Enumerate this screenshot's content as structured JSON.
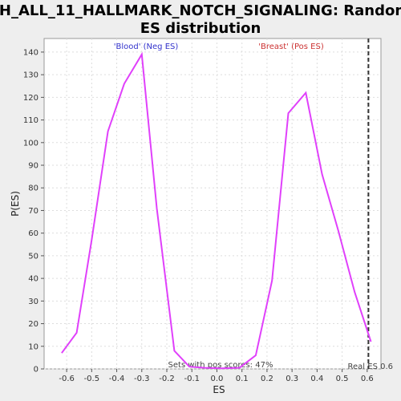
{
  "chart_data": {
    "type": "line",
    "title_line1": "H_ALL_11_HALLMARK_NOTCH_SIGNALING: Random",
    "title_line2": "ES distribution",
    "xlabel": "ES",
    "ylabel": "P(ES)",
    "xlim": [
      -0.69,
      0.655
    ],
    "ylim": [
      0,
      146
    ],
    "x_ticks": [
      -0.6,
      -0.5,
      -0.4,
      -0.3,
      -0.2,
      -0.1,
      0.0,
      0.1,
      0.2,
      0.3,
      0.4,
      0.5,
      0.6
    ],
    "x_tick_labels": [
      "-0.6",
      "-0.5",
      "-0.4",
      "-0.3",
      "-0.2",
      "-0.1",
      "0.0",
      "0.1",
      "0.2",
      "0.3",
      "0.4",
      "0.5",
      "0.6"
    ],
    "y_ticks": [
      0,
      10,
      20,
      30,
      40,
      50,
      60,
      70,
      80,
      90,
      100,
      110,
      120,
      130,
      140
    ],
    "y_tick_labels": [
      "0",
      "10",
      "20",
      "30",
      "40",
      "50",
      "60",
      "70",
      "80",
      "90",
      "100",
      "110",
      "120",
      "130",
      "140"
    ],
    "grid": true,
    "series_color": "#e040fb",
    "x": [
      -0.62,
      -0.56,
      -0.5,
      -0.435,
      -0.37,
      -0.3,
      -0.24,
      -0.17,
      -0.11,
      -0.05,
      0.02,
      0.09,
      0.155,
      0.22,
      0.285,
      0.355,
      0.42,
      0.485,
      0.55,
      0.615
    ],
    "y": [
      7,
      16,
      57,
      105,
      126,
      139,
      71,
      8,
      1,
      0.5,
      0.3,
      0.5,
      6,
      39,
      113,
      122,
      86,
      61,
      34,
      12
    ],
    "real_es": 0.605,
    "annotations": {
      "neg_label": "'Blood' (Neg ES)",
      "neg_color": "#3333cc",
      "pos_label": "'Breast' (Pos ES)",
      "pos_color": "#cc3333",
      "pos_scores": "Sets with pos scores: 47%",
      "real_es_label": "Real ES 0.6"
    }
  }
}
